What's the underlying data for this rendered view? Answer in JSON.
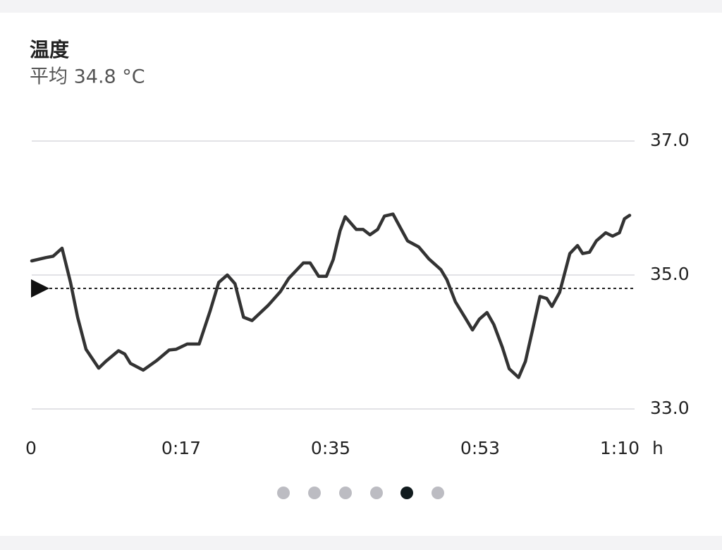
{
  "chart_data": {
    "type": "line",
    "title": "温度",
    "subtitle": "平均 34.8 °C",
    "x_unit": "h",
    "x": [
      0,
      1.65,
      2.5,
      3.55,
      4.54,
      5.37,
      6.36,
      7.84,
      8.67,
      10.16,
      10.9,
      11.56,
      13.05,
      14.6,
      16.1,
      16.9,
      18.2,
      19.6,
      20.9,
      21.9,
      22.9,
      23.8,
      24.8,
      25.8,
      27.7,
      29.1,
      30.1,
      31.8,
      32.6,
      33.6,
      34.5,
      35.3,
      36.1,
      36.7,
      38.0,
      38.8,
      39.6,
      40.5,
      41.3,
      42.3,
      43.1,
      44.0,
      45.3,
      46.5,
      47.9,
      48.6,
      49.6,
      50.8,
      51.6,
      52.4,
      53.3,
      54.1,
      55.1,
      55.9,
      57.0,
      57.8,
      58.6,
      59.5,
      60.3,
      60.9,
      61.8,
      63.0,
      63.9,
      64.5,
      65.3,
      66.1,
      67.2,
      68.0,
      68.8,
      69.4,
      70.0
    ],
    "series": [
      {
        "name": "温度",
        "color": "#333333",
        "values": [
          35.21,
          35.26,
          35.28,
          35.4,
          34.89,
          34.37,
          33.89,
          33.61,
          33.71,
          33.87,
          33.82,
          33.68,
          33.58,
          33.72,
          33.88,
          33.89,
          33.97,
          33.97,
          34.47,
          34.89,
          35.0,
          34.87,
          34.37,
          34.32,
          34.55,
          34.75,
          34.95,
          35.18,
          35.18,
          34.98,
          34.98,
          35.23,
          35.66,
          35.87,
          35.68,
          35.68,
          35.6,
          35.68,
          35.88,
          35.91,
          35.72,
          35.51,
          35.42,
          35.24,
          35.08,
          34.93,
          34.6,
          34.35,
          34.18,
          34.34,
          34.44,
          34.26,
          33.92,
          33.6,
          33.47,
          33.71,
          34.16,
          34.68,
          34.65,
          34.53,
          34.74,
          35.32,
          35.44,
          35.32,
          35.34,
          35.51,
          35.63,
          35.58,
          35.63,
          35.84,
          35.89
        ]
      }
    ],
    "reference_line": 34.8,
    "xlim": [
      0,
      70
    ],
    "xticks": [
      0,
      {
        "value": 17.5,
        "label": "0:17"
      },
      {
        "value": 35,
        "label": "0:35"
      },
      {
        "value": 52.5,
        "label": "0:53"
      },
      {
        "value": 70,
        "label": "1:10"
      }
    ],
    "ylim": [
      33,
      37
    ],
    "yticks": [
      {
        "value": 33,
        "label": "33.0"
      },
      {
        "value": 35,
        "label": "35.0"
      },
      {
        "value": 37,
        "label": "37.0"
      }
    ],
    "grid": true
  }
}
